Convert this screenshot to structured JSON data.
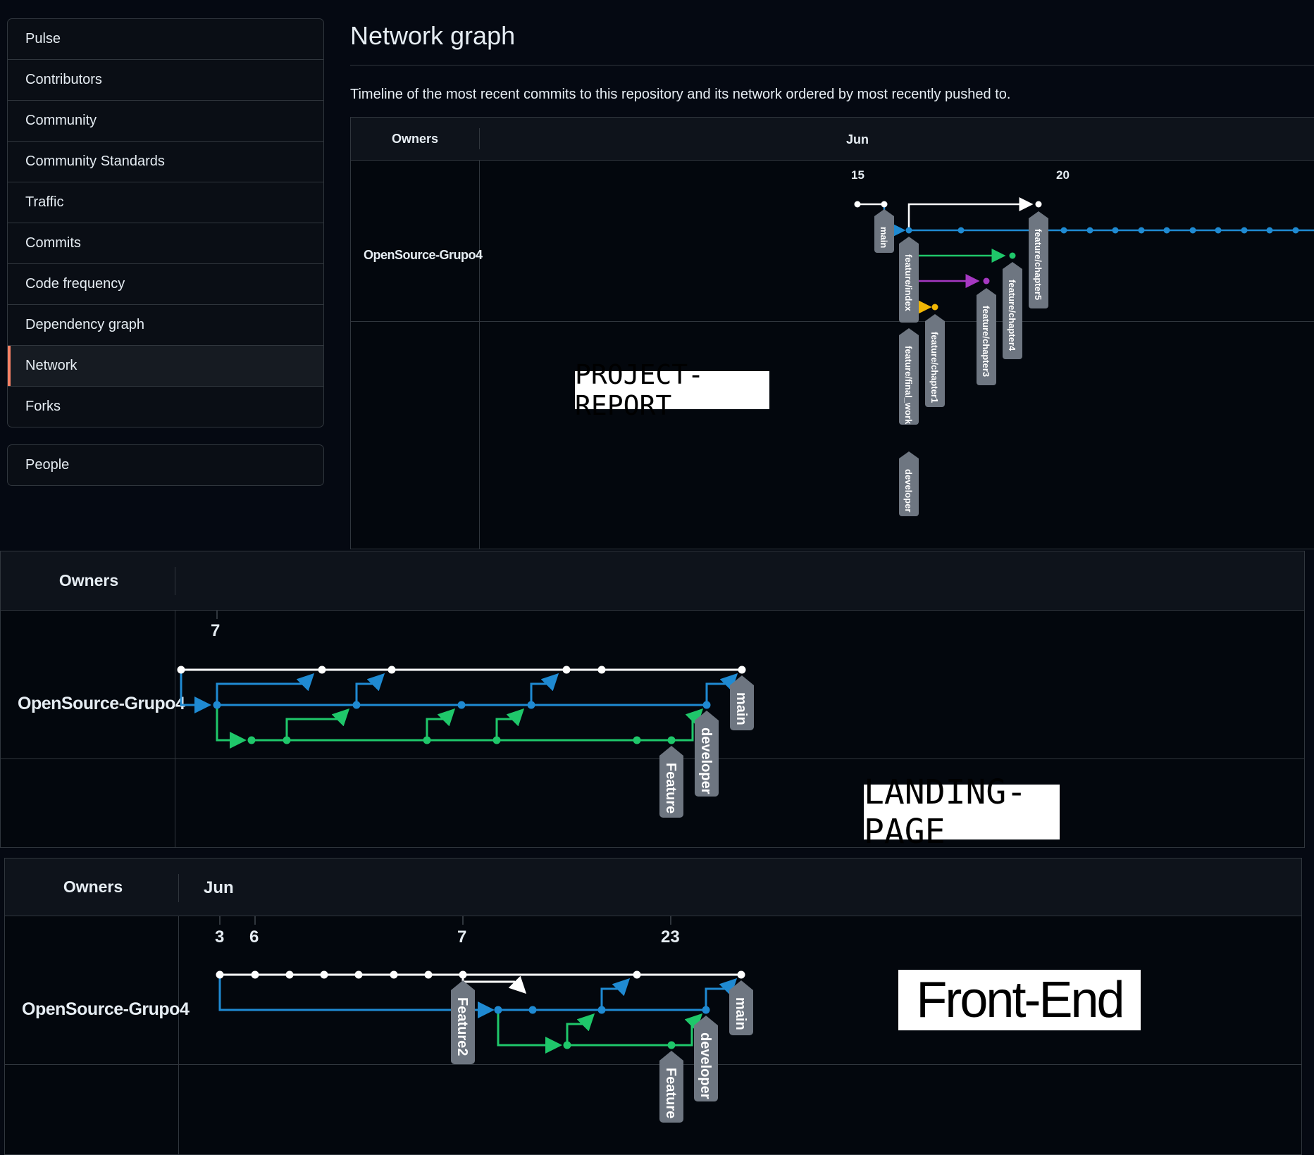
{
  "sidebar": {
    "items": [
      {
        "label": "Pulse"
      },
      {
        "label": "Contributors"
      },
      {
        "label": "Community"
      },
      {
        "label": "Community Standards"
      },
      {
        "label": "Traffic"
      },
      {
        "label": "Commits"
      },
      {
        "label": "Code frequency"
      },
      {
        "label": "Dependency graph"
      },
      {
        "label": "Network",
        "selected": true
      },
      {
        "label": "Forks"
      }
    ],
    "people": "People",
    "accent": "#f78166"
  },
  "header": {
    "title": "Network graph",
    "description": "Timeline of the most recent commits to this repository and its network ordered by most recently pushed to."
  },
  "colors": {
    "main": "#ffffff",
    "blue": "#1f8ad2",
    "green": "#1fc76a",
    "purple": "#a638c2",
    "yellow": "#f2b705",
    "label_bg": "#6e7681"
  },
  "graphs": {
    "project_report": {
      "owners": "Owners",
      "month": "Jun",
      "owner": "OpenSource-Grupo4",
      "days": [
        "15",
        "20"
      ],
      "banner": "PROJECT-REPORT",
      "branches": [
        "main",
        "feature/index",
        "feature/final_work",
        "developer",
        "feature/chapter1",
        "feature/chapter3",
        "feature/chapter4",
        "feature/chapter5"
      ]
    },
    "landing_page": {
      "owners": "Owners",
      "owner": "OpenSource-Grupo4",
      "days": [
        "7"
      ],
      "banner": "LANDING-PAGE",
      "branches": [
        "main",
        "developer",
        "Feature"
      ]
    },
    "front_end": {
      "owners": "Owners",
      "month": "Jun",
      "owner": "OpenSource-Grupo4",
      "days": [
        "3",
        "6",
        "7",
        "23"
      ],
      "banner": "Front-End",
      "branches": [
        "main",
        "developer",
        "Feature",
        "Feature2"
      ]
    }
  }
}
